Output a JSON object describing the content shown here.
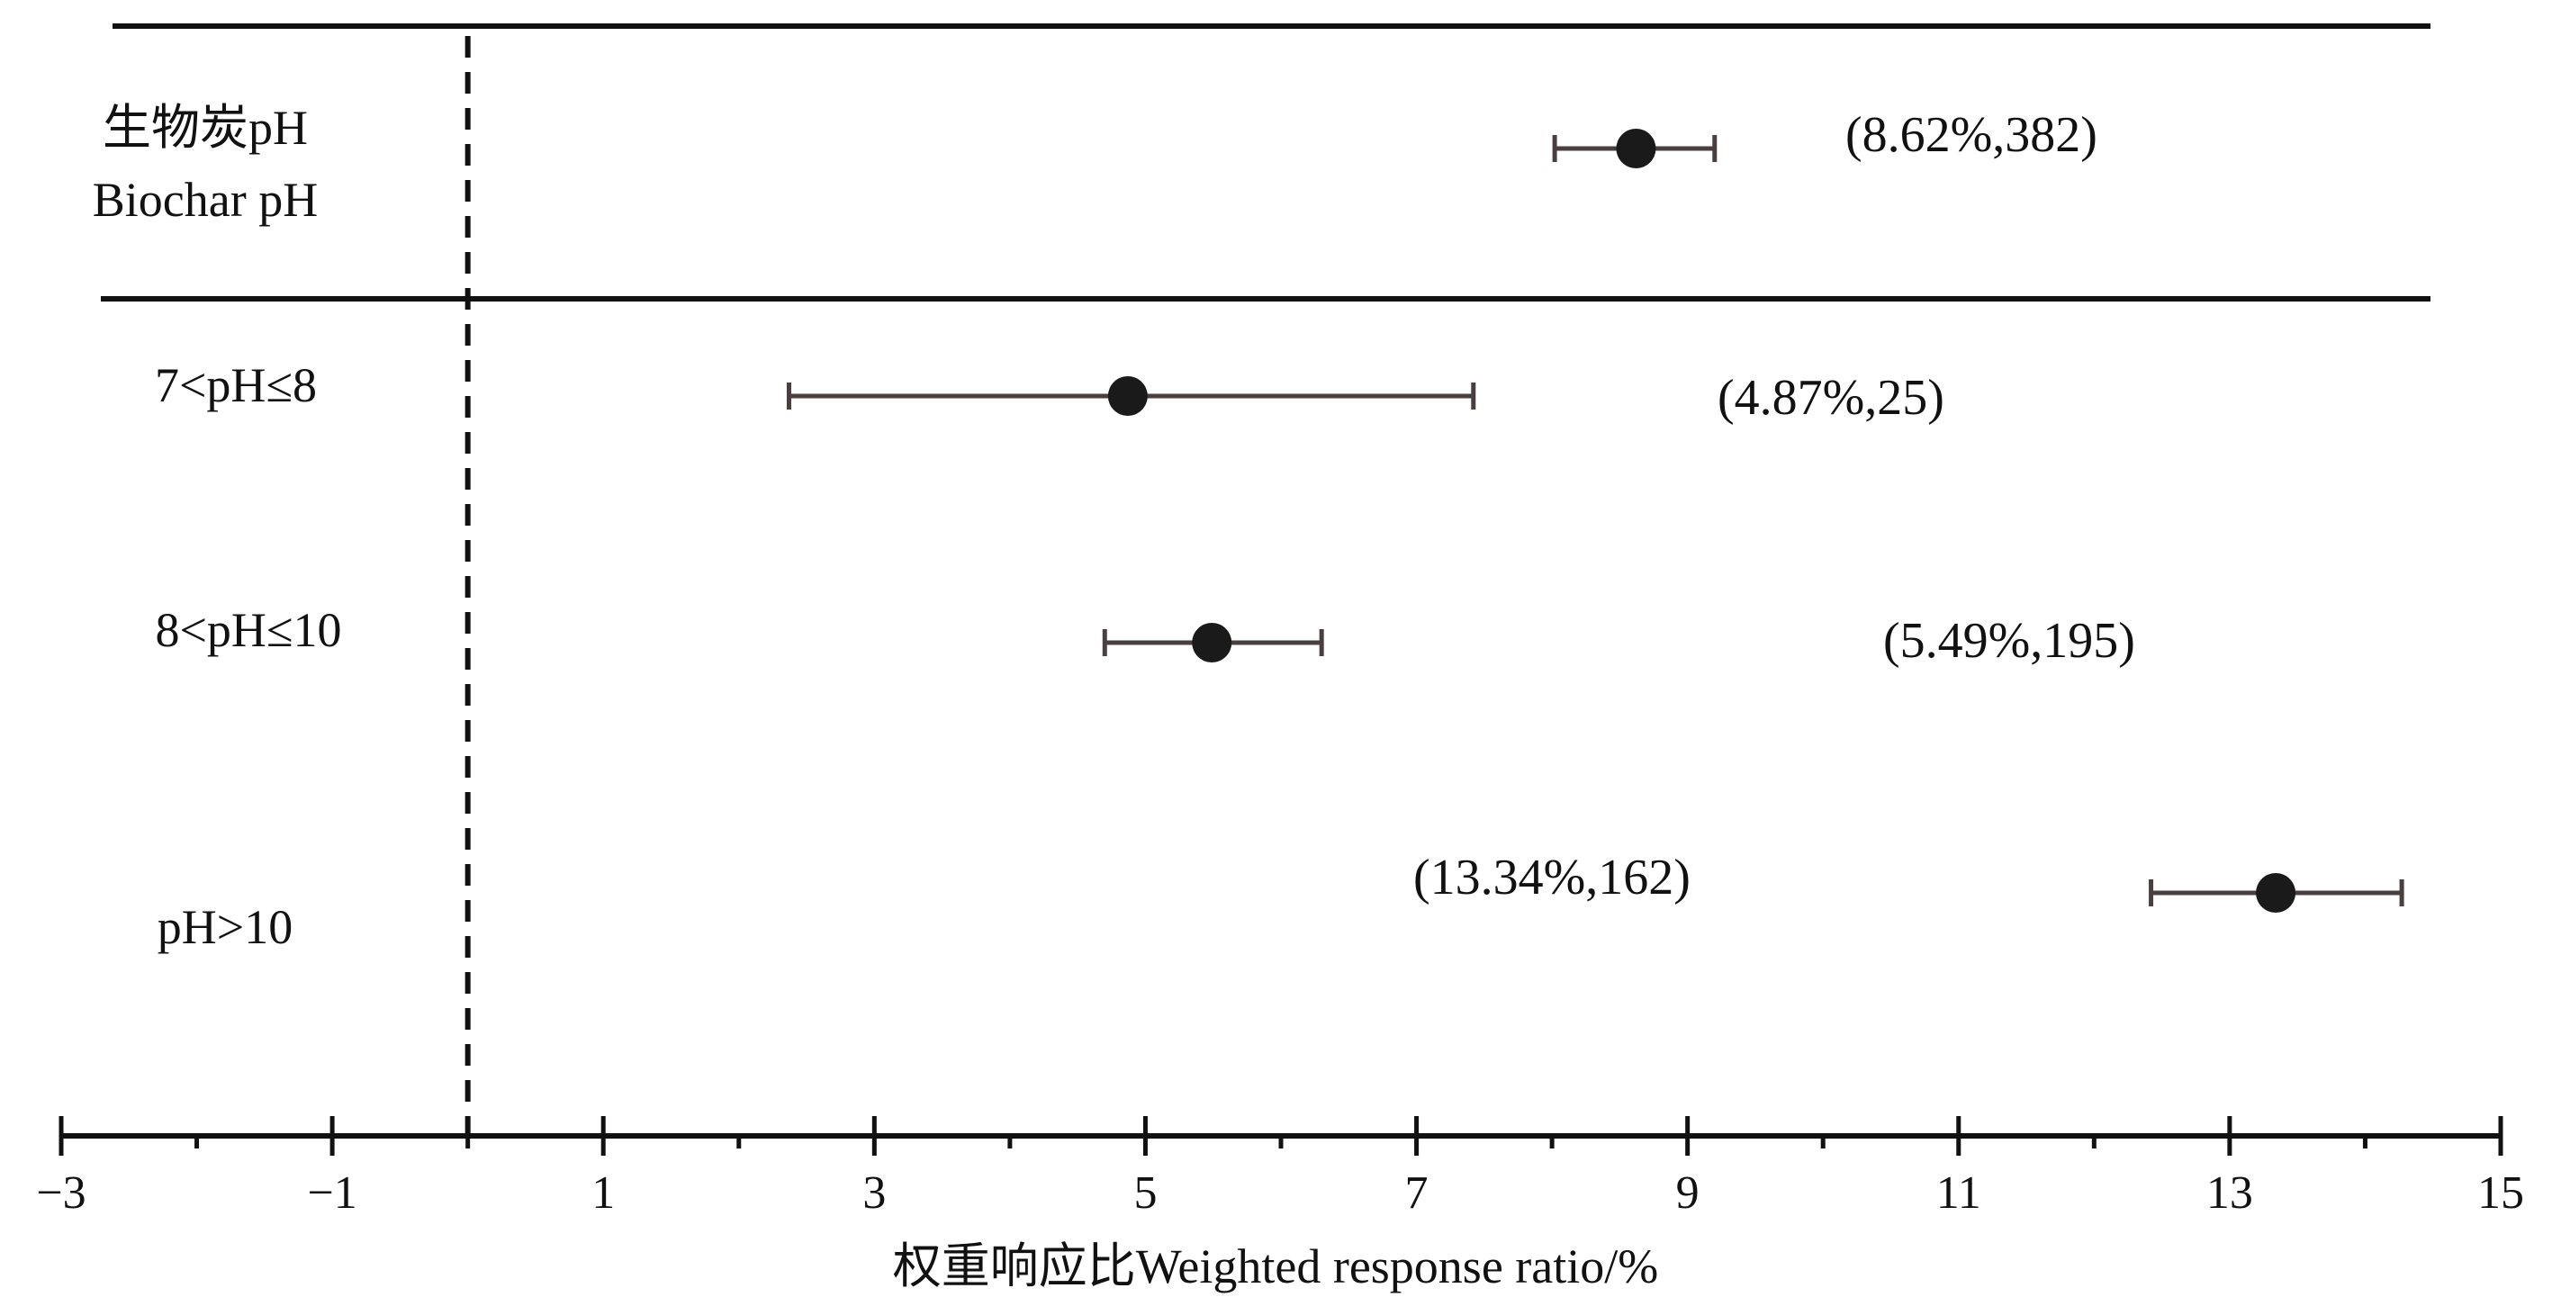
{
  "chart_data": {
    "type": "scatter",
    "title": "",
    "xlabel": "权重响应比Weighted response ratio/%",
    "ylabel": "",
    "xlim": [
      -3,
      15
    ],
    "xticks": [
      -3,
      -1,
      1,
      3,
      5,
      7,
      9,
      11,
      13,
      15
    ],
    "xtick_labels": [
      "−3",
      "−1",
      "1",
      "3",
      "5",
      "7",
      "9",
      "11",
      "13",
      "15"
    ],
    "reference_line_x": 0,
    "grid": false,
    "legend": "none",
    "marker_color": "#1a1a1a",
    "errorbar_color": "#4a3f3f",
    "line_color": "#111111",
    "groups": [
      {
        "label_lines": [
          "生物炭pH",
          "Biochar pH"
        ],
        "mean": 8.62,
        "ci_low": 8.02,
        "ci_high": 9.2,
        "annotation": "(8.62%,382)"
      },
      {
        "label_lines": [
          "7<pH≤8"
        ],
        "mean": 4.87,
        "ci_low": 2.37,
        "ci_high": 7.42,
        "annotation": "(4.87%,25)"
      },
      {
        "label_lines": [
          "8<pH≤10"
        ],
        "mean": 5.49,
        "ci_low": 4.7,
        "ci_high": 6.3,
        "annotation": "(5.49%,195)"
      },
      {
        "label_lines": [
          "pH>10"
        ],
        "mean": 13.34,
        "ci_low": 12.42,
        "ci_high": 14.27,
        "annotation": "(13.34%,162)"
      }
    ]
  }
}
